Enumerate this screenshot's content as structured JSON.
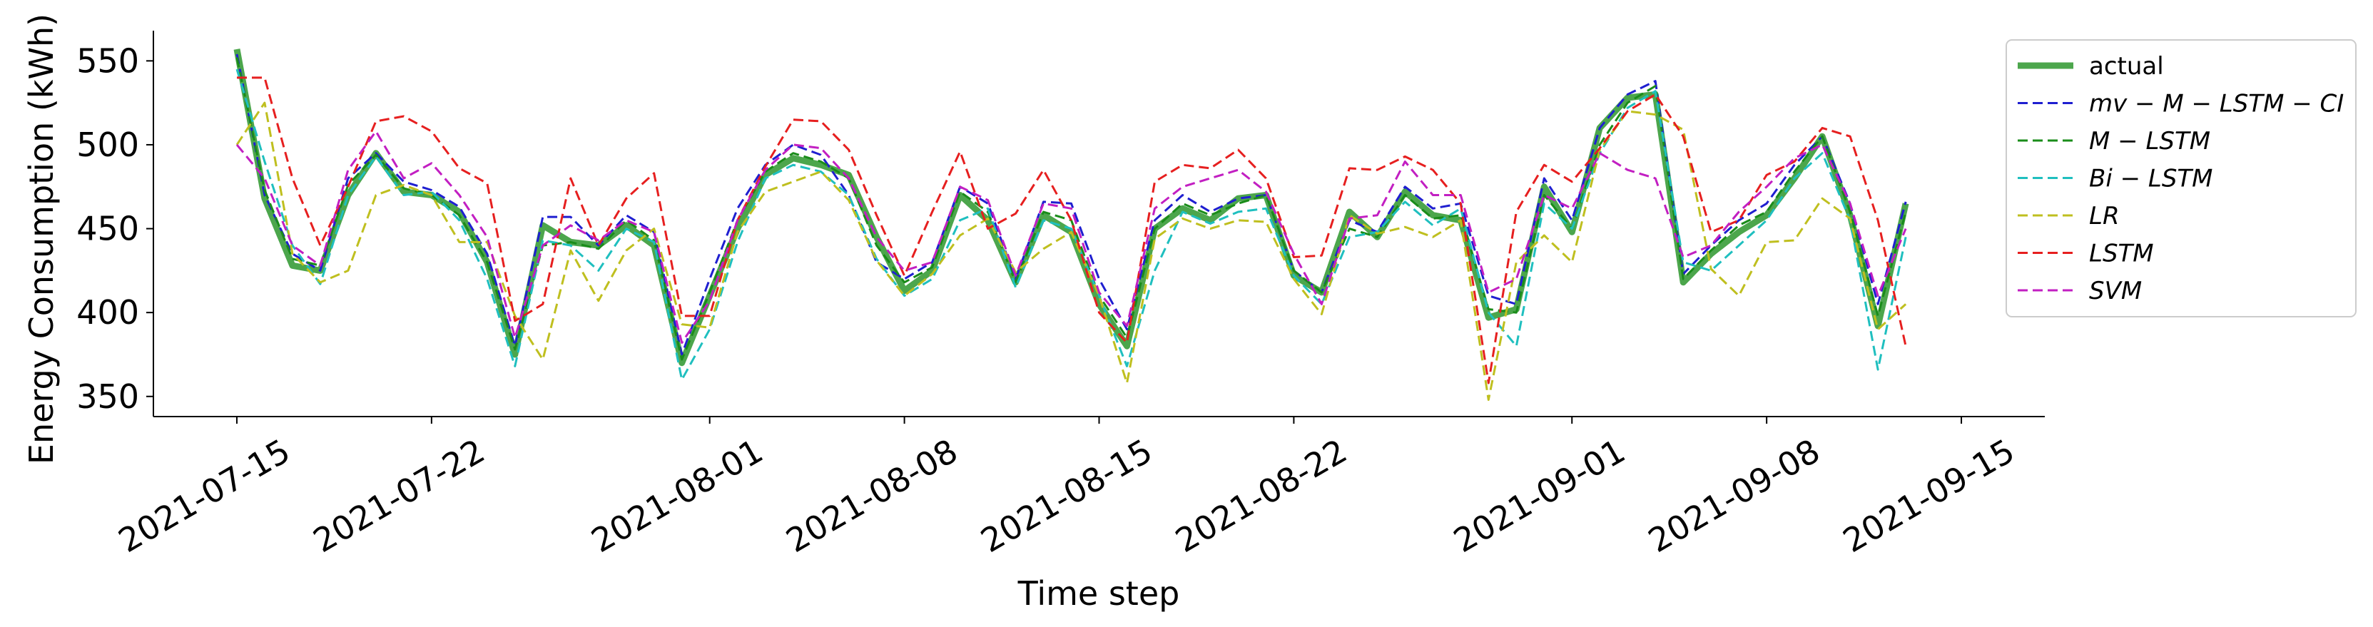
{
  "chart_data": {
    "type": "line",
    "xlabel": "Time step",
    "ylabel": "Energy Consumption (kWh)",
    "x_tick_labels": [
      "2021-07-15",
      "2021-07-22",
      "2021-08-01",
      "2021-08-08",
      "2021-08-15",
      "2021-08-22",
      "2021-09-01",
      "2021-09-08",
      "2021-09-15"
    ],
    "y_ticks": [
      350,
      400,
      450,
      500,
      550
    ],
    "ylim": [
      338,
      568
    ],
    "xlim": [
      "2021-07-12",
      "2021-09-18"
    ],
    "grid": false,
    "legend_position": "upper-right, outside plot",
    "x": [
      "2021-07-15",
      "2021-07-16",
      "2021-07-17",
      "2021-07-18",
      "2021-07-19",
      "2021-07-20",
      "2021-07-21",
      "2021-07-22",
      "2021-07-23",
      "2021-07-24",
      "2021-07-25",
      "2021-07-26",
      "2021-07-27",
      "2021-07-28",
      "2021-07-29",
      "2021-07-30",
      "2021-07-31",
      "2021-08-01",
      "2021-08-02",
      "2021-08-03",
      "2021-08-04",
      "2021-08-05",
      "2021-08-06",
      "2021-08-07",
      "2021-08-08",
      "2021-08-09",
      "2021-08-10",
      "2021-08-11",
      "2021-08-12",
      "2021-08-13",
      "2021-08-14",
      "2021-08-15",
      "2021-08-16",
      "2021-08-17",
      "2021-08-18",
      "2021-08-19",
      "2021-08-20",
      "2021-08-21",
      "2021-08-22",
      "2021-08-23",
      "2021-08-24",
      "2021-08-25",
      "2021-08-26",
      "2021-08-27",
      "2021-08-28",
      "2021-08-29",
      "2021-08-30",
      "2021-08-31",
      "2021-09-01",
      "2021-09-02",
      "2021-09-03",
      "2021-09-04",
      "2021-09-05",
      "2021-09-06",
      "2021-09-07",
      "2021-09-08",
      "2021-09-09",
      "2021-09-10",
      "2021-09-11",
      "2021-09-12",
      "2021-09-13"
    ],
    "series": [
      {
        "name": "actual",
        "color": "#4ca64c",
        "style": "solid",
        "values": [
          557,
          468,
          428,
          425,
          470,
          495,
          472,
          470,
          460,
          430,
          375,
          452,
          442,
          440,
          452,
          440,
          370,
          410,
          450,
          482,
          492,
          488,
          482,
          445,
          413,
          425,
          470,
          455,
          418,
          458,
          448,
          405,
          380,
          450,
          462,
          455,
          468,
          470,
          422,
          412,
          460,
          445,
          472,
          458,
          455,
          397,
          402,
          475,
          448,
          510,
          528,
          530,
          418,
          435,
          448,
          458,
          480,
          505,
          458,
          392,
          465
        ]
      },
      {
        "name": "mv-M-LSTM-CI",
        "color": "#1f1fd0",
        "style": "dashed",
        "values": [
          554,
          470,
          435,
          425,
          480,
          495,
          478,
          473,
          463,
          435,
          380,
          457,
          457,
          440,
          458,
          448,
          375,
          420,
          462,
          488,
          500,
          494,
          470,
          430,
          420,
          430,
          475,
          465,
          420,
          466,
          465,
          420,
          390,
          455,
          470,
          460,
          468,
          470,
          425,
          412,
          455,
          448,
          475,
          462,
          465,
          410,
          405,
          480,
          455,
          510,
          530,
          538,
          423,
          440,
          455,
          465,
          488,
          505,
          465,
          405,
          466
        ]
      },
      {
        "name": "M-LSTM",
        "color": "#1a8c1a",
        "style": "dashed",
        "values": [
          552,
          473,
          432,
          428,
          476,
          494,
          474,
          470,
          458,
          430,
          378,
          440,
          442,
          438,
          455,
          443,
          372,
          412,
          455,
          484,
          495,
          490,
          480,
          440,
          418,
          427,
          472,
          460,
          418,
          460,
          455,
          410,
          385,
          450,
          465,
          458,
          465,
          470,
          425,
          412,
          450,
          445,
          470,
          456,
          458,
          402,
          400,
          470,
          450,
          500,
          525,
          535,
          420,
          437,
          452,
          460,
          484,
          505,
          460,
          398,
          460
        ]
      },
      {
        "name": "Bi-LSTM",
        "color": "#1fbfbf",
        "style": "dashed",
        "values": [
          545,
          490,
          440,
          417,
          470,
          493,
          470,
          472,
          455,
          420,
          368,
          443,
          440,
          425,
          450,
          442,
          360,
          390,
          442,
          480,
          488,
          484,
          470,
          432,
          410,
          420,
          455,
          462,
          415,
          455,
          450,
          410,
          368,
          425,
          460,
          453,
          460,
          462,
          422,
          405,
          445,
          448,
          466,
          452,
          462,
          400,
          380,
          465,
          450,
          495,
          522,
          532,
          430,
          425,
          440,
          455,
          480,
          495,
          455,
          366,
          445
        ]
      },
      {
        "name": "LR",
        "color": "#bfbf1f",
        "style": "dashed",
        "values": [
          500,
          525,
          435,
          418,
          425,
          470,
          476,
          470,
          442,
          442,
          398,
          372,
          437,
          407,
          437,
          450,
          393,
          391,
          448,
          472,
          478,
          484,
          467,
          431,
          410,
          423,
          446,
          456,
          424,
          438,
          448,
          410,
          358,
          444,
          456,
          450,
          455,
          454,
          420,
          399,
          458,
          447,
          451,
          445,
          455,
          348,
          430,
          446,
          430,
          497,
          520,
          518,
          509,
          426,
          410,
          442,
          443,
          468,
          456,
          390,
          405
        ]
      },
      {
        "name": "LSTM",
        "color": "#e61f1f",
        "style": "dashed",
        "values": [
          540,
          540,
          480,
          440,
          475,
          514,
          517,
          508,
          486,
          477,
          395,
          405,
          480,
          440,
          468,
          483,
          398,
          398,
          455,
          487,
          515,
          514,
          497,
          458,
          422,
          460,
          496,
          450,
          459,
          485,
          455,
          400,
          382,
          478,
          488,
          486,
          497,
          480,
          433,
          434,
          486,
          485,
          493,
          485,
          465,
          358,
          460,
          488,
          478,
          498,
          520,
          530,
          505,
          448,
          455,
          482,
          490,
          510,
          505,
          455,
          380
        ]
      },
      {
        "name": "SVM",
        "color": "#c21fc2",
        "style": "dashed",
        "values": [
          500,
          480,
          440,
          428,
          485,
          508,
          480,
          489,
          470,
          445,
          385,
          440,
          452,
          443,
          455,
          448,
          382,
          407,
          455,
          485,
          500,
          498,
          480,
          445,
          425,
          430,
          475,
          467,
          422,
          465,
          462,
          412,
          392,
          462,
          475,
          480,
          485,
          472,
          435,
          405,
          456,
          458,
          490,
          470,
          470,
          412,
          420,
          470,
          462,
          495,
          485,
          480,
          433,
          440,
          460,
          475,
          492,
          500,
          465,
          410,
          450
        ]
      }
    ],
    "legend_entries": [
      "actual",
      "mv − M − LSTM − CI",
      "M − LSTM",
      "Bi − LSTM",
      "LR",
      "LSTM",
      "SVM"
    ]
  }
}
